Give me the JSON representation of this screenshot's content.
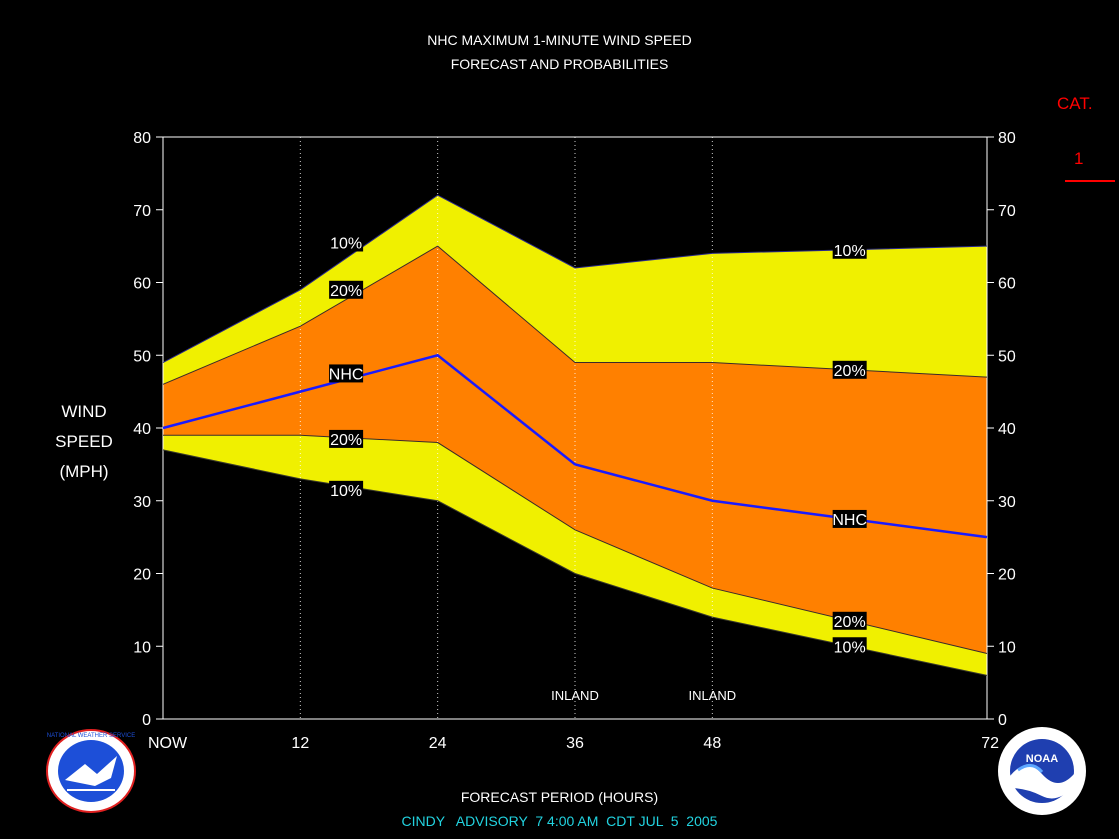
{
  "title_line1": "NHC MAXIMUM 1-MINUTE WIND SPEED",
  "title_line2": "FORECAST AND PROBABILITIES",
  "category": {
    "label": "CAT.",
    "value": "1"
  },
  "y_label_lines": [
    "WIND",
    "SPEED",
    "(MPH)"
  ],
  "x_title": "FORECAST PERIOD (HOURS)",
  "advisory": "CINDY   ADVISORY  7 4:00 AM  CDT JUL  5  2005",
  "colors": {
    "outer_band": "#f0f000",
    "inner_band": "#ff8000",
    "nhc_line": "#1a1aff",
    "category_red": "#ff0000",
    "advisory_text": "#22d3e0"
  },
  "logos": {
    "left": "nws-logo",
    "left_text": "NATIONAL WEATHER SERVICE",
    "right": "noaa-logo",
    "right_text": "NOAA"
  },
  "chart_data": {
    "type": "area",
    "x": [
      0,
      12,
      24,
      36,
      48,
      72
    ],
    "x_tick_labels": [
      "NOW",
      "12",
      "24",
      "36",
      "48",
      "72"
    ],
    "xlim": [
      0,
      72
    ],
    "ylim": [
      0,
      80
    ],
    "y_ticks": [
      0,
      10,
      20,
      30,
      40,
      50,
      60,
      70,
      80
    ],
    "y_tick_labels_right": [
      "0",
      "10",
      "20",
      "30",
      "40",
      "50",
      "60",
      "70",
      "80"
    ],
    "grid": "vertical dotted at 12, 24, 36, 48",
    "series": [
      {
        "name": "10%",
        "values": [
          49,
          59,
          72,
          62,
          64,
          65
        ]
      },
      {
        "name": "20%",
        "values": [
          46,
          54,
          65,
          49,
          49,
          47
        ]
      },
      {
        "name": "NHC",
        "values": [
          40,
          45,
          50,
          35,
          30,
          25
        ]
      },
      {
        "name": "20%",
        "values": [
          39,
          39,
          38,
          26,
          18,
          9
        ]
      },
      {
        "name": "10%",
        "values": [
          37,
          33,
          30,
          20,
          14,
          6
        ]
      }
    ],
    "annotations": [
      {
        "text": "INLAND",
        "x": 36
      },
      {
        "text": "INLAND",
        "x": 48
      }
    ],
    "series_labels": [
      {
        "text": "10%",
        "x": 16,
        "y": 65.5
      },
      {
        "text": "20%",
        "x": 16,
        "y": 59
      },
      {
        "text": "NHC",
        "x": 16,
        "y": 47.5
      },
      {
        "text": "20%",
        "x": 16,
        "y": 38.5
      },
      {
        "text": "10%",
        "x": 16,
        "y": 31.5
      },
      {
        "text": "10%",
        "x": 60,
        "y": 64.5
      },
      {
        "text": "20%",
        "x": 60,
        "y": 48
      },
      {
        "text": "NHC",
        "x": 60,
        "y": 27.5
      },
      {
        "text": "20%",
        "x": 60,
        "y": 13.5
      },
      {
        "text": "10%",
        "x": 60,
        "y": 10
      }
    ]
  }
}
